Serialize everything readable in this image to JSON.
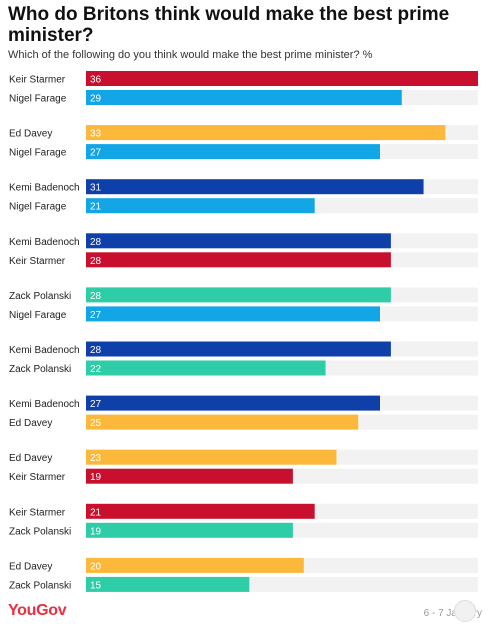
{
  "title": "Who do Britons think would make the best prime minister?",
  "subtitle": "Which of the following do you think would make the best prime minister? %",
  "footer": {
    "brand": "YouGov",
    "date": "6 - 7 January"
  },
  "colors": {
    "Keir Starmer": "#c8102e",
    "Nigel Farage": "#12a6e6",
    "Ed Davey": "#fbb83b",
    "Kemi Badenoch": "#0f3fa8",
    "Zack Polanski": "#2ecda7",
    "track": "#f2f2f2"
  },
  "chart_data": {
    "type": "bar",
    "orientation": "horizontal",
    "xlim": [
      0,
      36
    ],
    "pairs": [
      [
        {
          "name": "Keir Starmer",
          "value": 36
        },
        {
          "name": "Nigel Farage",
          "value": 29
        }
      ],
      [
        {
          "name": "Ed Davey",
          "value": 33
        },
        {
          "name": "Nigel Farage",
          "value": 27
        }
      ],
      [
        {
          "name": "Kemi Badenoch",
          "value": 31
        },
        {
          "name": "Nigel Farage",
          "value": 21
        }
      ],
      [
        {
          "name": "Kemi Badenoch",
          "value": 28
        },
        {
          "name": "Keir Starmer",
          "value": 28
        }
      ],
      [
        {
          "name": "Zack Polanski",
          "value": 28
        },
        {
          "name": "Nigel Farage",
          "value": 27
        }
      ],
      [
        {
          "name": "Kemi Badenoch",
          "value": 28
        },
        {
          "name": "Zack Polanski",
          "value": 22
        }
      ],
      [
        {
          "name": "Kemi Badenoch",
          "value": 27
        },
        {
          "name": "Ed Davey",
          "value": 25
        }
      ],
      [
        {
          "name": "Ed Davey",
          "value": 23
        },
        {
          "name": "Keir Starmer",
          "value": 19
        }
      ],
      [
        {
          "name": "Keir Starmer",
          "value": 21
        },
        {
          "name": "Zack Polanski",
          "value": 19
        }
      ],
      [
        {
          "name": "Ed Davey",
          "value": 20
        },
        {
          "name": "Zack Polanski",
          "value": 15
        }
      ]
    ]
  }
}
